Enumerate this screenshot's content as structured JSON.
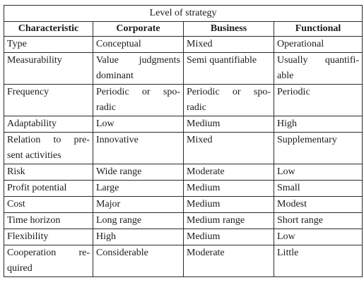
{
  "table": {
    "caption": "Level of strategy",
    "headers": [
      "Characteristic",
      "Corporate",
      "Business",
      "Functional"
    ],
    "rows": [
      {
        "characteristic": [
          "Type"
        ],
        "corporate": [
          "Conceptual"
        ],
        "business": [
          "Mixed"
        ],
        "functional": [
          "Operational"
        ]
      },
      {
        "characteristic": [
          "Measurability"
        ],
        "corporate": [
          "Value judgments",
          "dominant"
        ],
        "business": [
          "Semi quantifiable"
        ],
        "functional": [
          "Usually quantifi-",
          "able"
        ]
      },
      {
        "characteristic": [
          "Frequency"
        ],
        "corporate": [
          "Periodic or spo-",
          "radic"
        ],
        "business": [
          "Periodic or spo-",
          "radic"
        ],
        "functional": [
          "Periodic"
        ]
      },
      {
        "characteristic": [
          "Adaptability"
        ],
        "corporate": [
          "Low"
        ],
        "business": [
          "Medium"
        ],
        "functional": [
          "High"
        ]
      },
      {
        "characteristic": [
          "Relation to pre-",
          "sent activities"
        ],
        "corporate": [
          "Innovative"
        ],
        "business": [
          "Mixed"
        ],
        "functional": [
          "Supplementary"
        ]
      },
      {
        "characteristic": [
          "Risk"
        ],
        "corporate": [
          "Wide range"
        ],
        "business": [
          "Moderate"
        ],
        "functional": [
          "Low"
        ]
      },
      {
        "characteristic": [
          "Profit potential"
        ],
        "corporate": [
          "Large"
        ],
        "business": [
          "Medium"
        ],
        "functional": [
          "Small"
        ]
      },
      {
        "characteristic": [
          "Cost"
        ],
        "corporate": [
          "Major"
        ],
        "business": [
          "Medium"
        ],
        "functional": [
          "Modest"
        ]
      },
      {
        "characteristic": [
          "Time horizon"
        ],
        "corporate": [
          "Long range"
        ],
        "business": [
          "Medium range"
        ],
        "functional": [
          "Short range"
        ]
      },
      {
        "characteristic": [
          "Flexibility"
        ],
        "corporate": [
          "High"
        ],
        "business": [
          "Medium"
        ],
        "functional": [
          "Low"
        ]
      },
      {
        "characteristic": [
          "Cooperation re-",
          "quired"
        ],
        "corporate": [
          "Considerable"
        ],
        "business": [
          "Moderate"
        ],
        "functional": [
          "Little"
        ]
      }
    ]
  }
}
